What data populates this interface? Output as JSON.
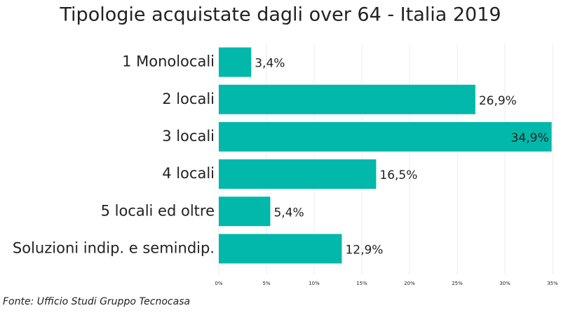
{
  "chart_data": {
    "type": "bar",
    "orientation": "horizontal",
    "title": "Tipologie acquistate dagli over 64 - Italia 2019",
    "categories": [
      "1 Monolocali",
      "2 locali",
      "3 locali",
      "4 locali",
      "5 locali ed oltre",
      "Soluzioni indip. e semindip."
    ],
    "values": [
      3.4,
      26.9,
      34.9,
      16.5,
      5.4,
      12.9
    ],
    "value_labels": [
      "3,4%",
      "26,9%",
      "34,9%",
      "16,5%",
      "5,4%",
      "12,9%"
    ],
    "color": "#01b8aa",
    "xlim": [
      0,
      35
    ],
    "xticks": [
      {
        "value": 0,
        "label": "0%"
      },
      {
        "value": 5,
        "label": "5%"
      },
      {
        "value": 10,
        "label": "10%"
      },
      {
        "value": 15,
        "label": "15%"
      },
      {
        "value": 20,
        "label": "20%"
      },
      {
        "value": 25,
        "label": "25%"
      },
      {
        "value": 30,
        "label": "30%"
      },
      {
        "value": 35,
        "label": "35%"
      }
    ],
    "grid": true,
    "source": "Fonte: Ufficio Studi Gruppo Tecnocasa"
  }
}
